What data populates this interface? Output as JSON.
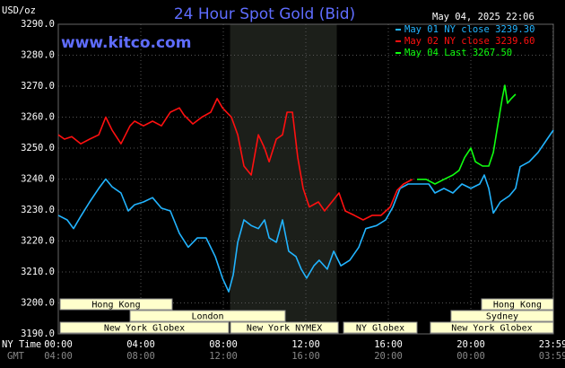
{
  "chart_data": {
    "type": "line",
    "title": "24 Hour Spot Gold (Bid)",
    "source": "www.kitco.com",
    "timestamp": "May 04, 2025 22:06",
    "y_unit": "USD/oz",
    "x_row_labels": [
      "NY Time",
      "GMT"
    ],
    "xlim": [
      0,
      24
    ],
    "ylim": [
      3190,
      3290
    ],
    "yticks": [
      {
        "value": 3190,
        "label": "3190.0"
      },
      {
        "value": 3200,
        "label": "3200.0"
      },
      {
        "value": 3210,
        "label": "3210.0"
      },
      {
        "value": 3220,
        "label": "3220.0"
      },
      {
        "value": 3230,
        "label": "3230.0"
      },
      {
        "value": 3240,
        "label": "3240.0"
      },
      {
        "value": 3250,
        "label": "3250.0"
      },
      {
        "value": 3260,
        "label": "3260.0"
      },
      {
        "value": 3270,
        "label": "3270.0"
      },
      {
        "value": 3280,
        "label": "3280.0"
      },
      {
        "value": 3290,
        "label": "3290.0"
      }
    ],
    "xticks": [
      {
        "value": 0,
        "label": "00:00"
      },
      {
        "value": 4,
        "label": "04:00"
      },
      {
        "value": 8,
        "label": "08:00"
      },
      {
        "value": 12,
        "label": "12:00"
      },
      {
        "value": 16,
        "label": "16:00"
      },
      {
        "value": 20,
        "label": "20:00"
      },
      {
        "value": 23.983,
        "label": "23:59"
      }
    ],
    "xticks2": [
      {
        "value": 0,
        "label": "04:00"
      },
      {
        "value": 4,
        "label": "08:00"
      },
      {
        "value": 8,
        "label": "12:00"
      },
      {
        "value": 12,
        "label": "16:00"
      },
      {
        "value": 16,
        "label": "20:00"
      },
      {
        "value": 20,
        "label": "00:00"
      },
      {
        "value": 23.983,
        "label": "03:59"
      }
    ],
    "grid": true,
    "session_band": [
      8.33,
      13.5
    ],
    "sessions": [
      {
        "label": "Hong Kong",
        "start": 0.09,
        "end": 5.52,
        "row": 0
      },
      {
        "label": "London",
        "start": 3.48,
        "end": 11.0,
        "row": 1
      },
      {
        "label": "New York Globex",
        "start": 0.09,
        "end": 8.26,
        "row": 2
      },
      {
        "label": "New York NYMEX",
        "start": 8.35,
        "end": 13.57,
        "row": 2
      },
      {
        "label": "NY Globex",
        "start": 13.83,
        "end": 17.39,
        "row": 2
      },
      {
        "label": "Hong Kong",
        "start": 20.52,
        "end": 24,
        "row": 0
      },
      {
        "label": "Sydney",
        "start": 19.04,
        "end": 24,
        "row": 1
      },
      {
        "label": "New York Globex",
        "start": 18.04,
        "end": 24,
        "row": 2
      }
    ],
    "series": [
      {
        "name": "May 01 NY close 3239.30",
        "color": "#22b4ff",
        "x": [
          0,
          0.43,
          0.74,
          1.09,
          1.52,
          1.96,
          2.3,
          2.61,
          3.04,
          3.39,
          3.7,
          4.13,
          4.57,
          5,
          5.43,
          5.87,
          6.3,
          6.74,
          7.17,
          7.61,
          7.96,
          8.26,
          8.48,
          8.7,
          9,
          9.35,
          9.7,
          10,
          10.22,
          10.57,
          10.87,
          11.17,
          11.52,
          11.78,
          12.04,
          12.39,
          12.65,
          13.04,
          13.35,
          13.7,
          14.13,
          14.57,
          14.91,
          15.43,
          15.87,
          16.22,
          16.57,
          16.96,
          17.39,
          17.96,
          18.26,
          18.7,
          19.13,
          19.57,
          20,
          20.43,
          20.65,
          20.87,
          21.09,
          21.43,
          21.87,
          22.17,
          22.39,
          22.83,
          23.26,
          23.7,
          24
        ],
        "values": [
          3228.3,
          3226.8,
          3224,
          3228,
          3232.6,
          3237,
          3240,
          3237.5,
          3235.5,
          3229.7,
          3231.7,
          3232.6,
          3234,
          3230.6,
          3229.7,
          3222.5,
          3218,
          3221,
          3221,
          3215,
          3208,
          3203.6,
          3209,
          3219.6,
          3226.8,
          3225,
          3224,
          3226.8,
          3221,
          3219.6,
          3226.8,
          3216.7,
          3215,
          3210.9,
          3208,
          3212,
          3213.8,
          3210.9,
          3216.7,
          3212,
          3213.8,
          3218,
          3224,
          3225,
          3226.8,
          3231,
          3237,
          3238.4,
          3238.4,
          3238.4,
          3235.5,
          3237,
          3235.5,
          3238.4,
          3237,
          3238.4,
          3241.3,
          3237,
          3229,
          3232.6,
          3234.6,
          3237,
          3244,
          3245.6,
          3248.6,
          3252.9,
          3255.8
        ]
      },
      {
        "name": "May 02 NY close 3239.60",
        "color": "#ff1010",
        "x": [
          0,
          0.3,
          0.65,
          1.09,
          1.52,
          1.96,
          2.3,
          2.61,
          3.04,
          3.48,
          3.7,
          4.13,
          4.57,
          5,
          5.43,
          5.87,
          6.09,
          6.52,
          6.96,
          7.39,
          7.7,
          7.96,
          8.39,
          8.7,
          9,
          9.35,
          9.7,
          10,
          10.22,
          10.57,
          10.87,
          11.09,
          11.35,
          11.61,
          11.87,
          12.17,
          12.61,
          12.91,
          13.26,
          13.61,
          13.91,
          14.35,
          14.78,
          15.22,
          15.65,
          16.09,
          16.43,
          16.74,
          17.17
        ],
        "values": [
          3254.3,
          3252.9,
          3253.7,
          3251.4,
          3252.9,
          3254.3,
          3260,
          3255.8,
          3251.4,
          3257.2,
          3258.7,
          3257.2,
          3258.7,
          3257.2,
          3261.6,
          3263,
          3260.7,
          3257.8,
          3260,
          3261.6,
          3266,
          3263,
          3260,
          3254.3,
          3244.2,
          3241.3,
          3254.3,
          3250,
          3245.6,
          3252.9,
          3254.3,
          3261.6,
          3261.6,
          3247,
          3237,
          3231,
          3232.6,
          3229.7,
          3232.6,
          3235.5,
          3229.7,
          3228.3,
          3226.8,
          3228.3,
          3228.3,
          3231,
          3236.4,
          3238.4,
          3239.9
        ]
      },
      {
        "name": "May 04 Last 3267.50",
        "color": "#10ff10",
        "x": [
          17.39,
          17.83,
          18.26,
          18.7,
          19.13,
          19.43,
          19.7,
          20,
          20.22,
          20.57,
          20.87,
          21.09,
          21.3,
          21.52,
          21.65,
          21.78,
          21.96,
          22.17
        ],
        "values": [
          3239.9,
          3239.9,
          3238.4,
          3239.9,
          3241.3,
          3242.8,
          3247,
          3250,
          3245.6,
          3244.2,
          3244.2,
          3248.6,
          3257.2,
          3266,
          3270.3,
          3264.5,
          3266,
          3267.4
        ]
      }
    ]
  }
}
